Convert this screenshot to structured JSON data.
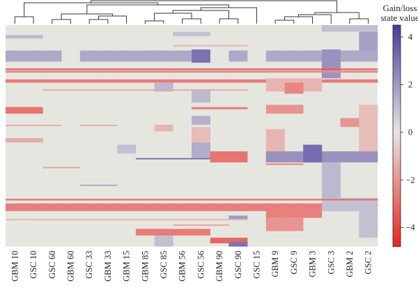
{
  "chart_data": {
    "type": "heatmap",
    "columns": [
      "GBM 10",
      "GSC 10",
      "GSC 60",
      "GBM 60",
      "GSC 33",
      "GBM 33",
      "GBM 15",
      "GBM 85",
      "GSC 85",
      "GBM 56",
      "GSC 56",
      "GBM 90",
      "GSC 90",
      "GSC 15",
      "GBM 9",
      "GSC 9",
      "GBM 3",
      "GSC 3",
      "GBM 2",
      "GSC 2"
    ],
    "colorbar": {
      "title_line1": "Gain/loss",
      "title_line2": "state value",
      "range": [
        -4.8,
        4.5
      ],
      "ticks": [
        4,
        2,
        0,
        -2,
        -4
      ],
      "tick_labels": [
        "4",
        "2",
        "0",
        "−2",
        "−4"
      ],
      "colors": {
        "positive": "#4a3a9a",
        "neutral": "#e6e6e1",
        "negative": "#e8231f"
      }
    },
    "dendrogram": "hierarchical clustering tree over columns (top)",
    "bands": [
      {
        "cols": [
          0,
          1
        ],
        "y0": 0.045,
        "y1": 0.06,
        "v": 1.2
      },
      {
        "cols": [
          17,
          18,
          19
        ],
        "y0": 0.0,
        "y1": 0.03,
        "v": 1.0
      },
      {
        "cols": [
          19
        ],
        "y0": 0.03,
        "y1": 0.15,
        "v": 1.8
      },
      {
        "cols": [
          9,
          10
        ],
        "y0": 0.03,
        "y1": 0.05,
        "v": 1.0
      },
      {
        "cols": [
          0,
          1,
          2,
          4,
          5,
          6,
          7,
          8,
          9,
          10,
          12,
          14,
          15,
          16,
          17,
          18,
          19
        ],
        "y0": 0.115,
        "y1": 0.165,
        "v": 1.6
      },
      {
        "cols": [
          10
        ],
        "y0": 0.11,
        "y1": 0.17,
        "v": 3.0
      },
      {
        "cols": [
          17
        ],
        "y0": 0.11,
        "y1": 0.24,
        "v": 2.2
      },
      {
        "cols": [
          0,
          1,
          2,
          3,
          4,
          5,
          6,
          7,
          8,
          9,
          10,
          11,
          12,
          13,
          14,
          15,
          16,
          17,
          18,
          19
        ],
        "y0": 0.205,
        "y1": 0.215,
        "v": -2.2
      },
      {
        "cols": [
          0,
          1,
          2,
          3,
          4,
          5,
          6,
          7,
          8,
          9,
          10,
          11,
          12,
          13,
          14,
          15,
          16,
          17,
          18,
          19
        ],
        "y0": 0.245,
        "y1": 0.26,
        "v": -2.6
      },
      {
        "cols": [
          8
        ],
        "y0": 0.26,
        "y1": 0.3,
        "v": 1.2
      },
      {
        "cols": [
          14,
          15,
          16
        ],
        "y0": 0.24,
        "y1": 0.3,
        "v": -1.2
      },
      {
        "cols": [
          15
        ],
        "y0": 0.26,
        "y1": 0.31,
        "v": -2.4
      },
      {
        "cols": [
          10
        ],
        "y0": 0.29,
        "y1": 0.35,
        "v": 1.2
      },
      {
        "cols": [
          0,
          1
        ],
        "y0": 0.37,
        "y1": 0.4,
        "v": -2.8
      },
      {
        "cols": [
          10,
          11,
          12
        ],
        "y0": 0.37,
        "y1": 0.38,
        "v": -2.5
      },
      {
        "cols": [
          14,
          15
        ],
        "y0": 0.36,
        "y1": 0.4,
        "v": -2.0
      },
      {
        "cols": [
          10
        ],
        "y0": 0.41,
        "y1": 0.45,
        "v": 1.4
      },
      {
        "cols": [
          18
        ],
        "y0": 0.42,
        "y1": 0.46,
        "v": -2.0
      },
      {
        "cols": [
          19
        ],
        "y0": 0.36,
        "y1": 0.6,
        "v": -1.0
      },
      {
        "cols": [
          10
        ],
        "y0": 0.46,
        "y1": 0.54,
        "v": -1.0
      },
      {
        "cols": [
          0,
          1
        ],
        "y0": 0.51,
        "y1": 0.53,
        "v": -1.4
      },
      {
        "cols": [
          8
        ],
        "y0": 0.45,
        "y1": 0.48,
        "v": -1.2
      },
      {
        "cols": [
          6
        ],
        "y0": 0.54,
        "y1": 0.58,
        "v": 1.0
      },
      {
        "cols": [
          10
        ],
        "y0": 0.53,
        "y1": 0.6,
        "v": 1.5
      },
      {
        "cols": [
          14
        ],
        "y0": 0.47,
        "y1": 0.62,
        "v": -1.2
      },
      {
        "cols": [
          11,
          12
        ],
        "y0": 0.57,
        "y1": 0.62,
        "v": -2.8
      },
      {
        "cols": [
          14,
          15,
          16,
          17,
          18,
          19
        ],
        "y0": 0.57,
        "y1": 0.62,
        "v": 2.2
      },
      {
        "cols": [
          16
        ],
        "y0": 0.54,
        "y1": 0.62,
        "v": 3.2
      },
      {
        "cols": [
          17
        ],
        "y0": 0.62,
        "y1": 0.8,
        "v": 1.2
      },
      {
        "cols": [
          0,
          1,
          2,
          3,
          4,
          5,
          6,
          7,
          8,
          9,
          10,
          11,
          12,
          13,
          14,
          15,
          16,
          17,
          18,
          19
        ],
        "y0": 0.805,
        "y1": 0.84,
        "v": -2.5
      },
      {
        "cols": [
          14,
          15,
          16
        ],
        "y0": 0.84,
        "y1": 0.87,
        "v": -2.5
      },
      {
        "cols": [
          14,
          15
        ],
        "y0": 0.87,
        "y1": 0.93,
        "v": -2.0
      },
      {
        "cols": [
          12
        ],
        "y0": 0.86,
        "y1": 0.88,
        "v": 2.0
      },
      {
        "cols": [
          17,
          18,
          19
        ],
        "y0": 0.78,
        "y1": 0.84,
        "v": 1.0
      },
      {
        "cols": [
          19
        ],
        "y0": 0.84,
        "y1": 0.96,
        "v": 1.0
      },
      {
        "cols": [
          7,
          8,
          9,
          10
        ],
        "y0": 0.92,
        "y1": 0.95,
        "v": -2.6
      },
      {
        "cols": [
          8
        ],
        "y0": 0.95,
        "y1": 1.0,
        "v": 1.0
      },
      {
        "cols": [
          11,
          12
        ],
        "y0": 0.96,
        "y1": 0.985,
        "v": -3.2
      },
      {
        "cols": [
          12
        ],
        "y0": 0.98,
        "y1": 1.0,
        "v": 3.0
      }
    ],
    "lines": [
      {
        "cols": [
          0,
          1,
          2,
          3,
          4,
          5,
          6,
          7,
          8,
          9,
          10,
          11,
          12,
          13,
          14,
          15,
          16,
          17,
          18,
          19
        ],
        "y": 0.196,
        "v": -3.5
      },
      {
        "cols": [
          0,
          1,
          2,
          3,
          4,
          5,
          6,
          7,
          8,
          9,
          10,
          11,
          12,
          13,
          14,
          15,
          16,
          17,
          18,
          19
        ],
        "y": 0.785,
        "v": -3.2
      },
      {
        "cols": [
          2,
          3,
          4,
          5,
          6,
          7,
          8,
          9,
          10,
          11,
          12
        ],
        "y": 0.29,
        "v": -1.5
      },
      {
        "cols": [
          0,
          1,
          2,
          4,
          5
        ],
        "y": 0.45,
        "v": -1.4
      },
      {
        "cols": [
          4,
          5
        ],
        "y": 0.72,
        "v": 1.5
      },
      {
        "cols": [
          7,
          8,
          9,
          10
        ],
        "y": 0.6,
        "v": 3.0
      },
      {
        "cols": [
          2,
          3
        ],
        "y": 0.64,
        "v": -1.5
      },
      {
        "cols": [
          14,
          15
        ],
        "y": 0.625,
        "v": -2.5
      },
      {
        "cols": [
          9,
          10,
          11,
          12
        ],
        "y": 0.09,
        "v": -1.2
      },
      {
        "cols": [
          0,
          1,
          2,
          3,
          4,
          5,
          6,
          7,
          8,
          9,
          10,
          11,
          12
        ],
        "y": 0.875,
        "v": -1.2
      },
      {
        "cols": [
          9,
          10,
          11
        ],
        "y": 0.9,
        "v": -1.6
      }
    ]
  }
}
